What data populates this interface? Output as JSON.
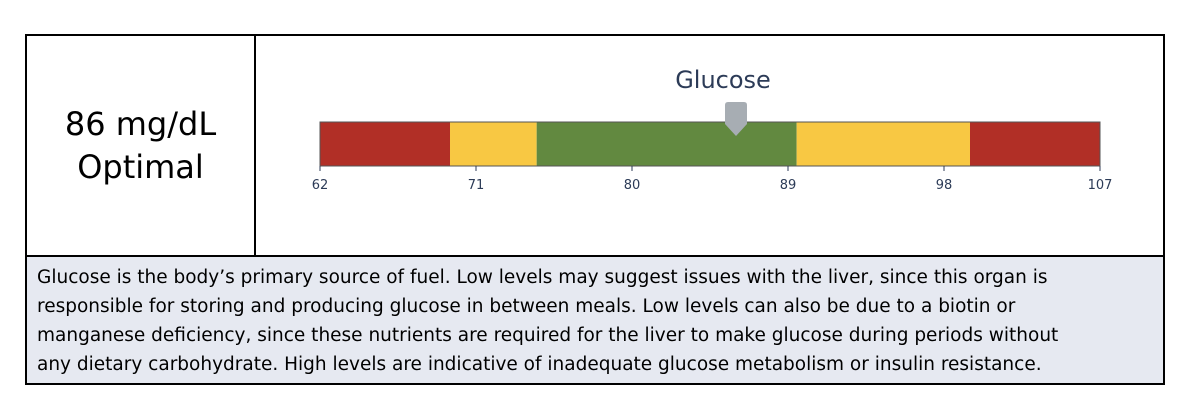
{
  "result": {
    "value": "86 mg/dL",
    "status": "Optimal"
  },
  "chart_data": {
    "type": "bar",
    "title": "Glucose",
    "xlim": [
      62,
      107
    ],
    "ticks": [
      "62",
      "71",
      "80",
      "89",
      "98",
      "107"
    ],
    "tick_values": [
      62,
      71,
      80,
      89,
      98,
      107
    ],
    "marker_value": 86,
    "bands": [
      {
        "from": 62,
        "to": 69.5,
        "color": "#b12f26"
      },
      {
        "from": 69.5,
        "to": 74.5,
        "color": "#f8c843"
      },
      {
        "from": 74.5,
        "to": 89.5,
        "color": "#628940"
      },
      {
        "from": 89.5,
        "to": 99.5,
        "color": "#f8c843"
      },
      {
        "from": 99.5,
        "to": 107,
        "color": "#b12f26"
      }
    ],
    "marker_color": "#a7adb3",
    "tick_color": "#2c3b57"
  },
  "description": {
    "line1": "Glucose is the body’s primary source of fuel. Low levels may suggest issues with the liver, since this organ is",
    "line2": "responsible for storing and producing glucose in between meals. Low levels can also be due to a biotin or",
    "line3": "manganese deficiency, since these nutrients are required for the liver to make glucose during periods without",
    "line4": "any dietary carbohydrate. High levels are indicative of inadequate glucose metabolism or insulin resistance."
  }
}
